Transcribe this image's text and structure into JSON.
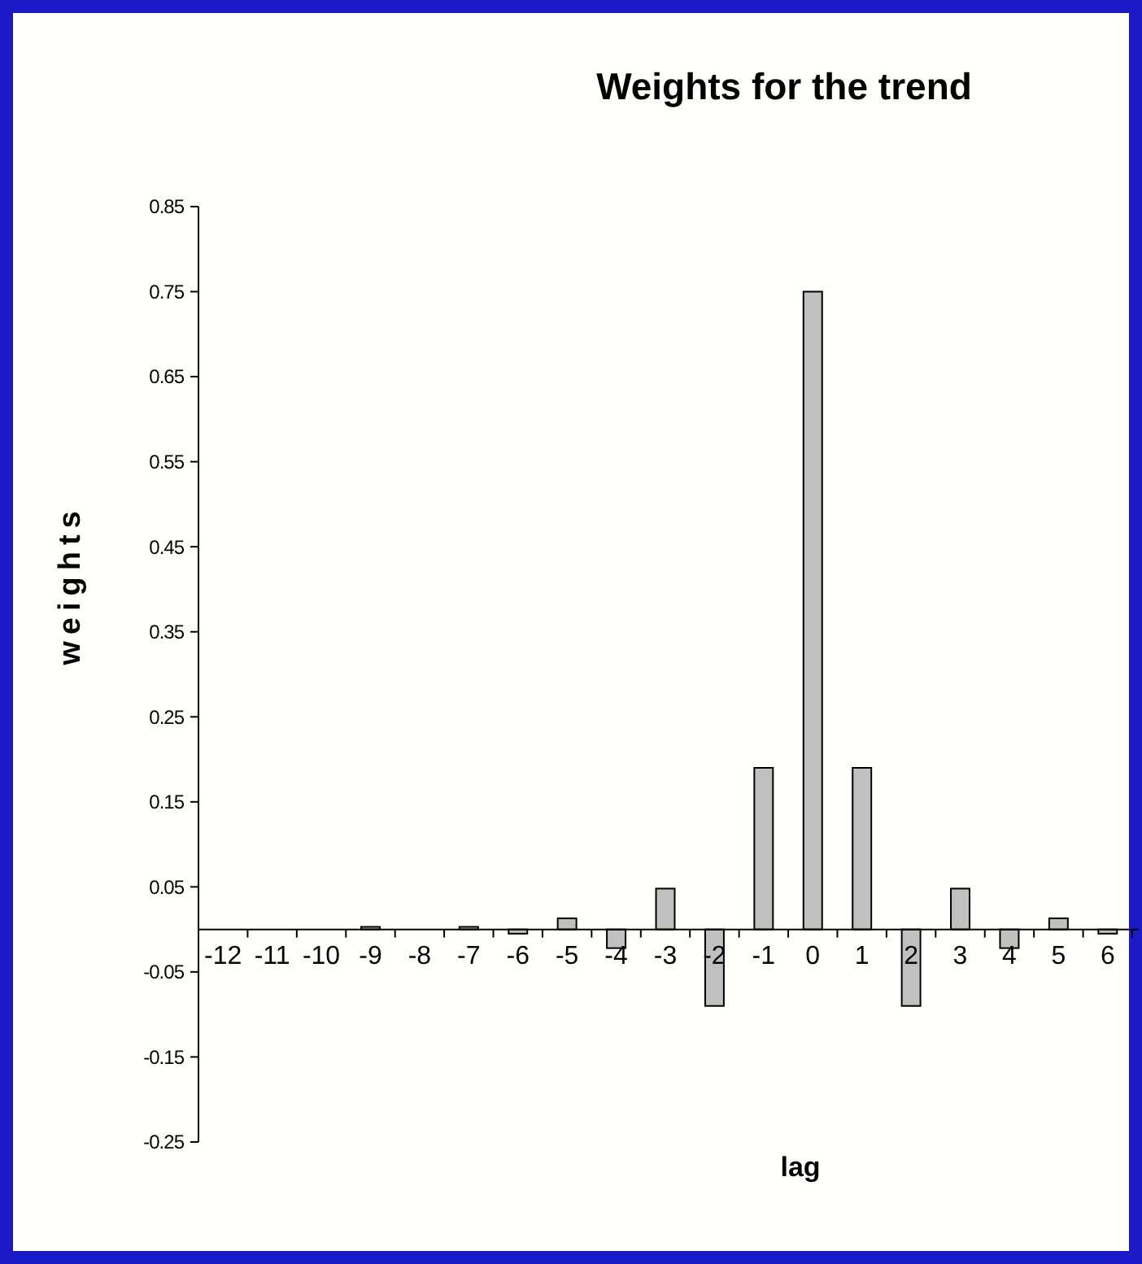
{
  "chart_data": {
    "type": "bar",
    "title": "Weights for the trend",
    "xlabel": "lag",
    "ylabel": "weights",
    "categories": [
      "-12",
      "-11",
      "-10",
      "-9",
      "-8",
      "-7",
      "-6",
      "-5",
      "-4",
      "-3",
      "-2",
      "-1",
      "0",
      "1",
      "2",
      "3",
      "4",
      "5",
      "6"
    ],
    "values": [
      0,
      0,
      0,
      0.003,
      0,
      0.003,
      -0.005,
      0.013,
      -0.022,
      0.048,
      -0.09,
      0.19,
      0.75,
      0.19,
      -0.09,
      0.048,
      -0.022,
      0.013,
      -0.005
    ],
    "color": "#c0c0c0",
    "ylim": [
      -0.25,
      0.85
    ],
    "yticks": [
      -0.25,
      -0.15,
      -0.05,
      0.05,
      0.15,
      0.25,
      0.35,
      0.45,
      0.55,
      0.65,
      0.75,
      0.85
    ],
    "grid": false
  }
}
